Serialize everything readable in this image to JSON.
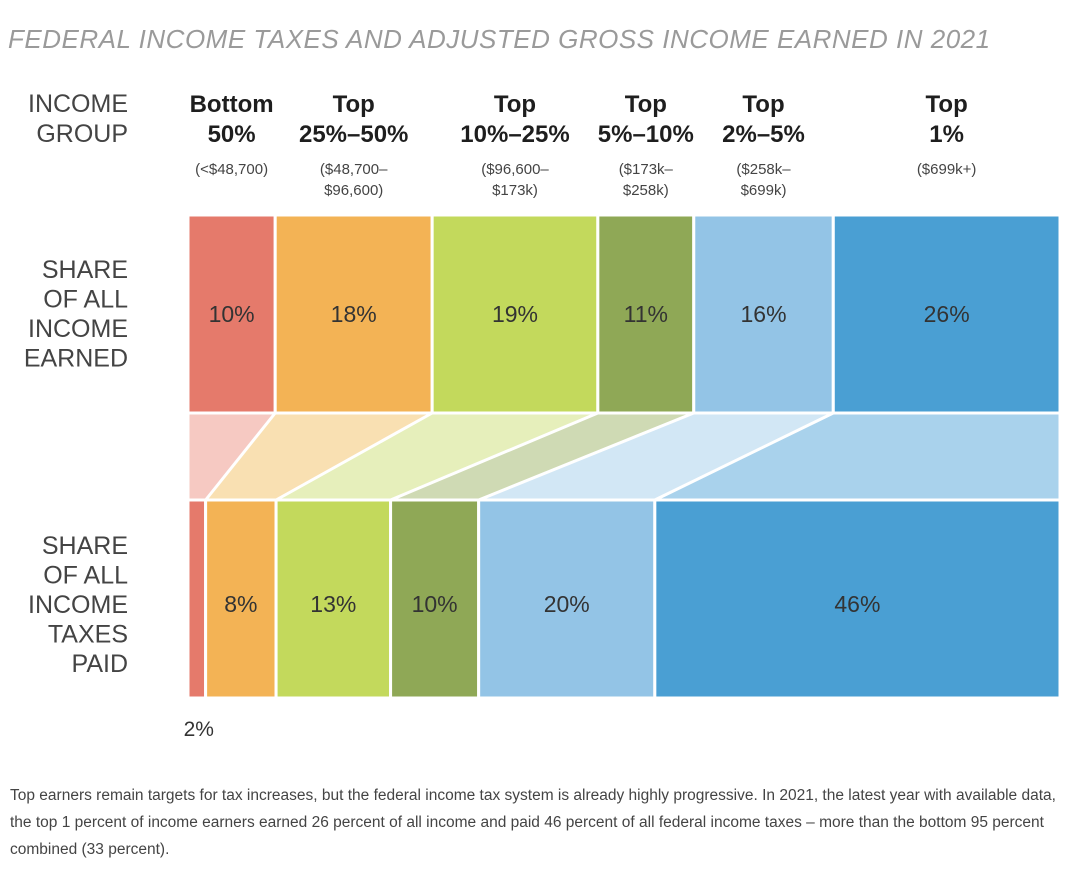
{
  "title": "FEDERAL INCOME TAXES AND ADJUSTED GROSS INCOME EARNED IN 2021",
  "chart_data": {
    "type": "stacked-bar-flow",
    "title": "FEDERAL INCOME TAXES AND ADJUSTED GROSS INCOME EARNED IN 2021",
    "header_label": [
      "INCOME",
      "GROUP"
    ],
    "groups": [
      {
        "name": [
          "Bottom",
          "50%"
        ],
        "range": [
          "(<$48,700)"
        ],
        "color": "#e57a6b",
        "light": "#f6c9c2"
      },
      {
        "name": [
          "Top",
          "25%–50%"
        ],
        "range": [
          "($48,700–",
          "$96,600)"
        ],
        "color": "#f3b355",
        "light": "#f9e0b2"
      },
      {
        "name": [
          "Top",
          "10%–25%"
        ],
        "range": [
          "($96,600–",
          "$173k)"
        ],
        "color": "#c3d95c",
        "light": "#e6efbb"
      },
      {
        "name": [
          "Top",
          "5%–10%"
        ],
        "range": [
          "($173k–",
          "$258k)"
        ],
        "color": "#8fa856",
        "light": "#cfdab4"
      },
      {
        "name": [
          "Top",
          "2%–5%"
        ],
        "range": [
          "($258k–",
          "$699k)"
        ],
        "color": "#93c4e6",
        "light": "#d2e7f5"
      },
      {
        "name": [
          "Top",
          "1%"
        ],
        "range": [
          "($699k+)"
        ],
        "color": "#4a9fd3",
        "light": "#a9d2ec"
      }
    ],
    "series": [
      {
        "name": [
          "SHARE",
          "OF ALL",
          "INCOME",
          "EARNED"
        ],
        "values": [
          10,
          18,
          19,
          11,
          16,
          26
        ],
        "labels": [
          "10%",
          "18%",
          "19%",
          "11%",
          "16%",
          "26%"
        ]
      },
      {
        "name": [
          "SHARE",
          "OF ALL",
          "INCOME",
          "TAXES",
          "PAID"
        ],
        "values": [
          2,
          8,
          13,
          10,
          20,
          46
        ],
        "labels": [
          "2%",
          "8%",
          "13%",
          "10%",
          "20%",
          "46%"
        ]
      }
    ]
  },
  "caption": "Top earners remain targets for tax increases, but the federal income tax system is already highly progressive. In 2021, the latest year with available data, the top 1 percent of income earners earned 26 percent of all income and paid 46 percent of all federal income taxes – more than the bottom 95 percent combined (33 percent)."
}
